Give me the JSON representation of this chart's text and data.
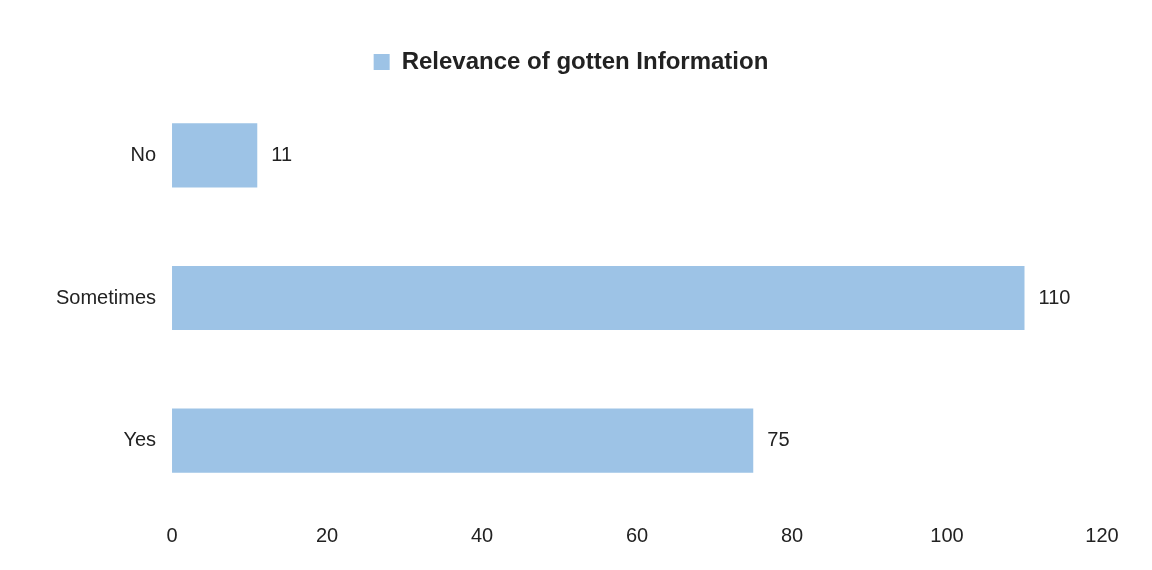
{
  "chart_data": {
    "type": "bar",
    "orientation": "horizontal",
    "categories": [
      "No",
      "Sometimes",
      "Yes"
    ],
    "series": [
      {
        "name": "Relevance of gotten Information",
        "color": "#9dc3e6",
        "values": [
          11,
          110,
          75
        ]
      }
    ],
    "xlim": [
      0,
      120
    ],
    "xticks": [
      0,
      20,
      40,
      60,
      80,
      100,
      120
    ],
    "data_labels": true,
    "legend": "top",
    "grid": false
  }
}
